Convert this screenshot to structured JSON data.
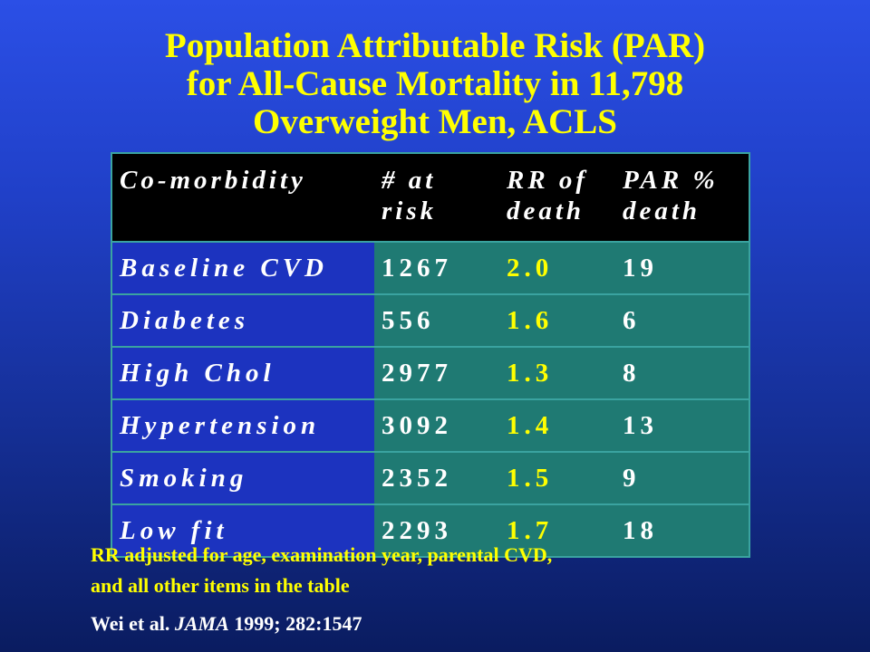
{
  "title": {
    "line1": "Population Attributable Risk (PAR)",
    "line2": "for All-Cause Mortality in 11,798",
    "line3": "Overweight Men, ACLS"
  },
  "table": {
    "headers": [
      "Co-morbidity",
      "# at risk",
      "RR of death",
      "PAR % death"
    ],
    "rows": [
      [
        "Baseline CVD",
        "1267",
        "2.0",
        "19"
      ],
      [
        "Diabetes",
        "556",
        "1.6",
        "6"
      ],
      [
        "High Chol",
        "2977",
        "1.3",
        "8"
      ],
      [
        "Hypertension",
        "3092",
        "1.4",
        "13"
      ],
      [
        "Smoking",
        "2352",
        "1.5",
        "9"
      ],
      [
        "Low fit",
        "2293",
        "1.7",
        "18"
      ]
    ]
  },
  "chart_data": {
    "type": "table",
    "columns": [
      "Co-morbidity",
      "# at risk",
      "RR of death",
      "PAR % death"
    ],
    "rows": [
      {
        "Co-morbidity": "Baseline CVD",
        "# at risk": 1267,
        "RR of death": 2.0,
        "PAR % death": 19
      },
      {
        "Co-morbidity": "Diabetes",
        "# at risk": 556,
        "RR of death": 1.6,
        "PAR % death": 6
      },
      {
        "Co-morbidity": "High Chol",
        "# at risk": 2977,
        "RR of death": 1.3,
        "PAR % death": 8
      },
      {
        "Co-morbidity": "Hypertension",
        "# at risk": 3092,
        "RR of death": 1.4,
        "PAR % death": 13
      },
      {
        "Co-morbidity": "Smoking",
        "# at risk": 2352,
        "RR of death": 1.5,
        "PAR % death": 9
      },
      {
        "Co-morbidity": "Low fit",
        "# at risk": 2293,
        "RR of death": 1.7,
        "PAR % death": 18
      }
    ]
  },
  "note": {
    "line1": "RR adjusted for age, examination year, parental CVD,",
    "line2": "and all other items in the table"
  },
  "citation": {
    "authors": "Wei et al.",
    "journal": "JAMA",
    "details": "1999; 282:1547"
  },
  "colors": {
    "title": "#ffff00",
    "header_bg": "#000000",
    "name_cell_bg": "#1c33bf",
    "value_cell_bg": "#1f7a73",
    "rr_text": "#ffff00"
  }
}
